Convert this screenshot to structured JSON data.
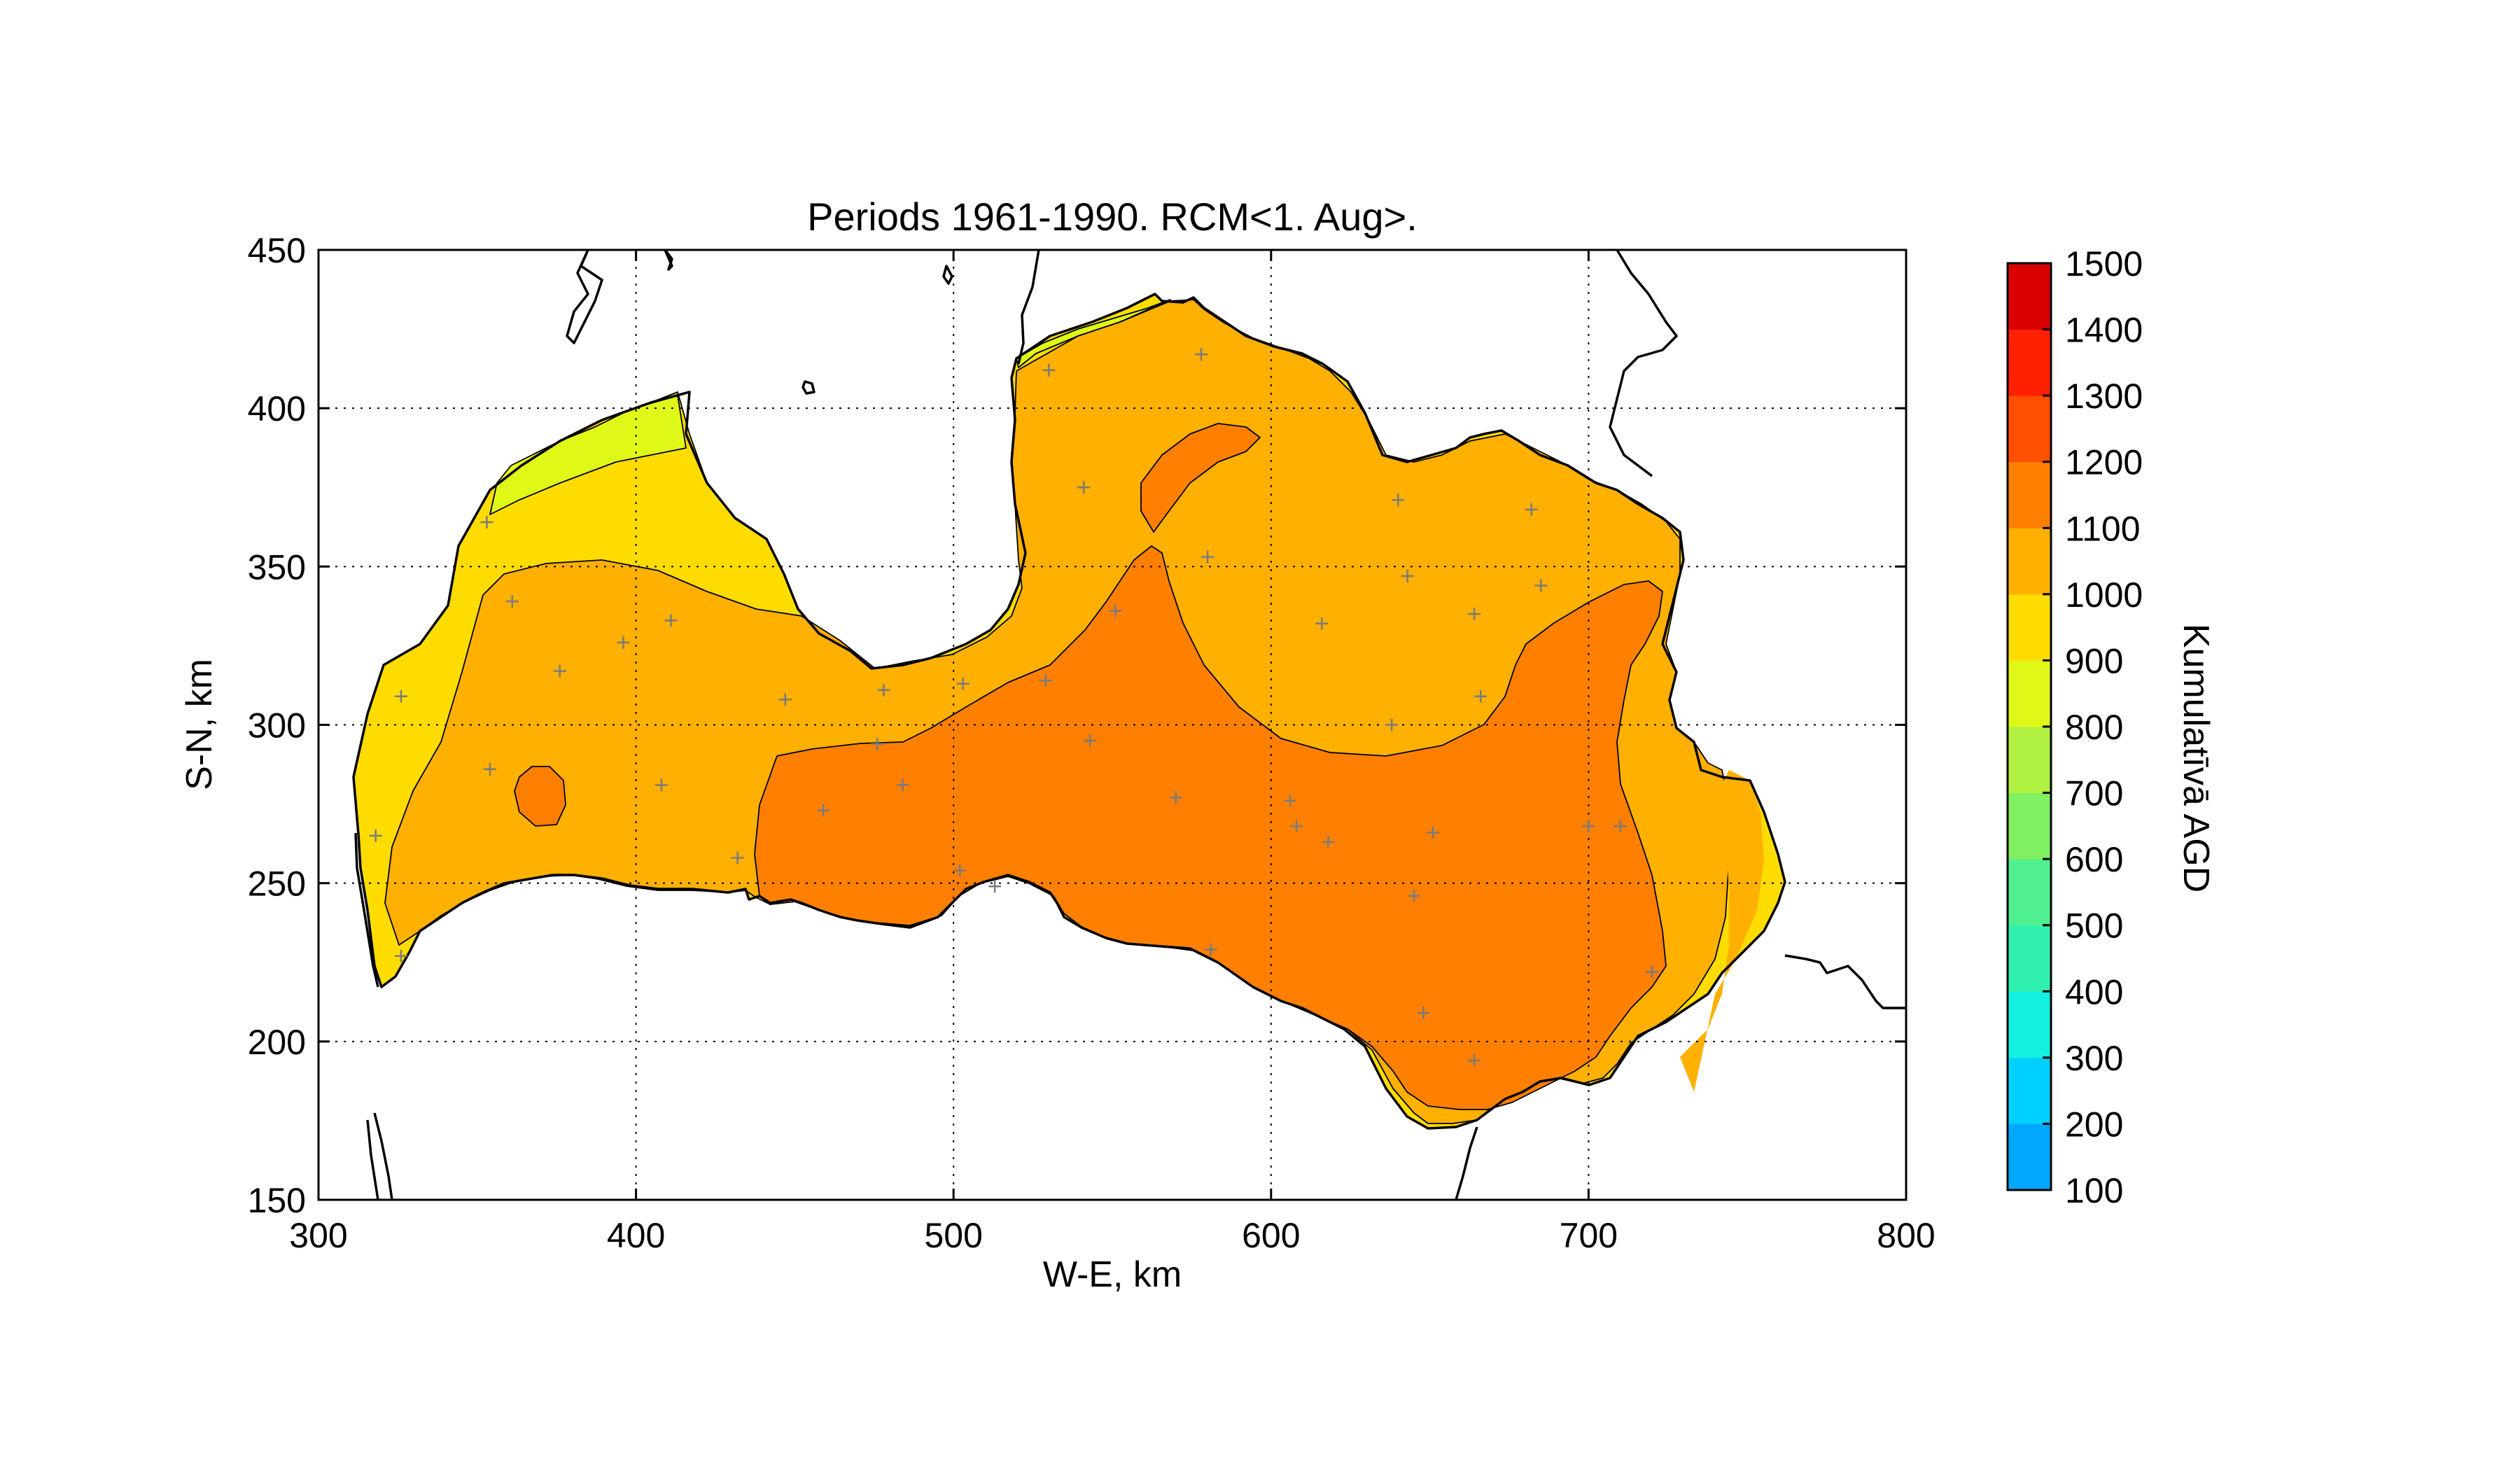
{
  "chart_data": {
    "type": "heatmap",
    "title": "Periods 1961-1990. RCM<1. Aug>.",
    "xlabel": "W-E, km",
    "ylabel": "S-N, km",
    "xlim": [
      300,
      800
    ],
    "ylim": [
      150,
      450
    ],
    "xticks": [
      "300",
      "400",
      "500",
      "600",
      "700",
      "800"
    ],
    "yticks": [
      "150",
      "200",
      "250",
      "300",
      "350",
      "400",
      "450"
    ],
    "grid": true,
    "colorbar": {
      "label": "Kumulatīvā AGD",
      "levels": [
        100,
        200,
        300,
        400,
        500,
        600,
        700,
        800,
        900,
        1000,
        1100,
        1200,
        1300,
        1400,
        1500
      ],
      "tick_labels": [
        "100",
        "200",
        "300",
        "400",
        "500",
        "600",
        "700",
        "800",
        "900",
        "1000",
        "1100",
        "1200",
        "1300",
        "1400",
        "1500"
      ],
      "colors": [
        "#0080ff",
        "#00a8ff",
        "#00d0ff",
        "#14f0e0",
        "#30f0b0",
        "#50f090",
        "#80f060",
        "#b0f040",
        "#e0f818",
        "#ffdc00",
        "#ffb000",
        "#ff8000",
        "#ff5000",
        "#ff2000",
        "#d80000"
      ]
    },
    "contour_fills": {
      "900-1000": "#e0f818",
      "1000-1100": "#ffdc00",
      "1100-1200": "#ffb000",
      "1200-1300": "#ff8000"
    },
    "stations": [
      [
        361,
        339
      ],
      [
        376,
        317
      ],
      [
        396,
        326
      ],
      [
        411,
        333
      ],
      [
        408,
        281
      ],
      [
        354,
        286
      ],
      [
        432,
        258
      ],
      [
        447,
        308
      ],
      [
        459,
        273
      ],
      [
        476,
        294
      ],
      [
        478,
        311
      ],
      [
        484,
        281
      ],
      [
        502,
        254
      ],
      [
        503,
        313
      ],
      [
        513,
        249
      ],
      [
        529,
        314
      ],
      [
        530,
        412
      ],
      [
        541,
        375
      ],
      [
        543,
        295
      ],
      [
        551,
        336
      ],
      [
        570,
        277
      ],
      [
        578,
        417
      ],
      [
        580,
        353
      ],
      [
        581,
        229
      ],
      [
        606,
        276
      ],
      [
        608,
        268
      ],
      [
        616,
        332
      ],
      [
        618,
        263
      ],
      [
        638,
        300
      ],
      [
        640,
        371
      ],
      [
        643,
        347
      ],
      [
        645,
        246
      ],
      [
        648,
        209
      ],
      [
        651,
        266
      ],
      [
        664,
        335
      ],
      [
        664,
        194
      ],
      [
        666,
        309
      ],
      [
        682,
        368
      ],
      [
        685,
        344
      ],
      [
        700,
        268
      ],
      [
        710,
        268
      ],
      [
        720,
        222
      ],
      [
        326,
        227
      ],
      [
        318,
        265
      ],
      [
        326,
        309
      ],
      [
        353,
        364
      ]
    ]
  }
}
